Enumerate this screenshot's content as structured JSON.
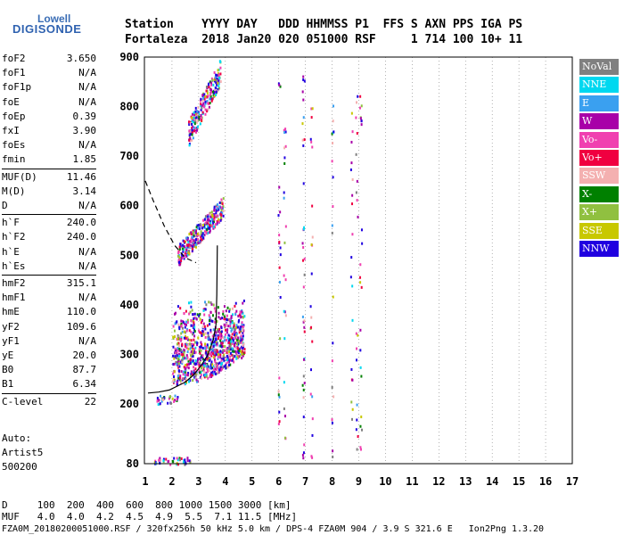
{
  "logo": {
    "line1": "Lowell",
    "line2": "DIGISONDE"
  },
  "header": {
    "line1": "Station    YYYY DAY   DDD HHMMSS P1  FFS S AXN PPS IGA PS",
    "line2": "Fortaleza  2018 Jan20 020 051000 RSF     1 714 100 10+ 11"
  },
  "params": [
    {
      "name": "foF2",
      "value": "3.650"
    },
    {
      "name": "foF1",
      "value": "N/A"
    },
    {
      "name": "foF1p",
      "value": "N/A"
    },
    {
      "name": "foE",
      "value": "N/A"
    },
    {
      "name": "foEp",
      "value": "0.39"
    },
    {
      "name": "fxI",
      "value": "3.90"
    },
    {
      "name": "foEs",
      "value": "N/A"
    },
    {
      "name": "fmin",
      "value": "1.85"
    },
    {
      "name": "MUF(D)",
      "value": "11.46"
    },
    {
      "name": "M(D)",
      "value": "3.14"
    },
    {
      "name": "D",
      "value": "N/A"
    },
    {
      "name": "h`F",
      "value": "240.0"
    },
    {
      "name": "h`F2",
      "value": "240.0"
    },
    {
      "name": "h`E",
      "value": "N/A"
    },
    {
      "name": "h`Es",
      "value": "N/A"
    },
    {
      "name": "hmF2",
      "value": "315.1"
    },
    {
      "name": "hmF1",
      "value": "N/A"
    },
    {
      "name": "hmE",
      "value": "110.0"
    },
    {
      "name": "yF2",
      "value": "109.6"
    },
    {
      "name": "yF1",
      "value": "N/A"
    },
    {
      "name": "yE",
      "value": "20.0"
    },
    {
      "name": "B0",
      "value": "87.7"
    },
    {
      "name": "B1",
      "value": "6.34"
    },
    {
      "name": "C-level",
      "value": "22"
    }
  ],
  "notes": {
    "auto": "Auto:",
    "artist": "Artist5",
    "version": "500200"
  },
  "legend": [
    {
      "label": "NoVal",
      "color": "#808080"
    },
    {
      "label": "NNE",
      "color": "#00d8f0"
    },
    {
      "label": "E",
      "color": "#3aa0f0"
    },
    {
      "label": "W",
      "color": "#a800a8"
    },
    {
      "label": "Vo-",
      "color": "#f040b0"
    },
    {
      "label": "Vo+",
      "color": "#f00040"
    },
    {
      "label": "SSW",
      "color": "#f4b0b0"
    },
    {
      "label": "X-",
      "color": "#008000"
    },
    {
      "label": "X+",
      "color": "#90c040"
    },
    {
      "label": "SSE",
      "color": "#c8c800"
    },
    {
      "label": "NNW",
      "color": "#2000e0"
    }
  ],
  "chart_data": {
    "type": "scatter",
    "title": "",
    "xlabel": "",
    "ylabel": "",
    "xlim": [
      1,
      17
    ],
    "ylim": [
      80,
      900
    ],
    "xticks": [
      "1",
      "2",
      "3",
      "4",
      "5",
      "6",
      "7",
      "8",
      "9",
      "10",
      "11",
      "12",
      "13",
      "14",
      "15",
      "16",
      "17"
    ],
    "yticks": [
      "80",
      "200",
      "300",
      "400",
      "500",
      "600",
      "700",
      "800",
      "900"
    ],
    "grid": "dotted vertical at each MHz",
    "profile_curve": {
      "name": "",
      "x": [
        1.1,
        1.5,
        1.9,
        2.2,
        2.5,
        2.8,
        3.1,
        3.35,
        3.55,
        3.65
      ],
      "y": [
        222,
        224,
        228,
        236,
        244,
        258,
        278,
        300,
        330,
        360
      ]
    },
    "profile_vertical": {
      "x": [
        3.65,
        3.68,
        3.7
      ],
      "y": [
        360,
        420,
        520
      ]
    },
    "dashed_curve": {
      "x": [
        1.0,
        1.3,
        1.7,
        2.1,
        2.5,
        2.9
      ],
      "y": [
        650,
        610,
        560,
        520,
        495,
        485
      ]
    },
    "echo_clusters": [
      {
        "name": "F2 trace (vertical)",
        "x_range": [
          2.0,
          4.7
        ],
        "y_range": [
          240,
          420
        ]
      },
      {
        "name": "F2 second hop",
        "x_range": [
          2.2,
          3.9
        ],
        "y_range": [
          480,
          620
        ]
      },
      {
        "name": "F2 third hop",
        "x_range": [
          2.6,
          3.8
        ],
        "y_range": [
          720,
          900
        ]
      },
      {
        "name": "Es low trace",
        "x_range": [
          1.3,
          2.7
        ],
        "y_range": [
          80,
          95
        ]
      },
      {
        "name": "E low echoes",
        "x_range": [
          1.4,
          2.2
        ],
        "y_range": [
          200,
          220
        ]
      },
      {
        "name": "oblique 6 MHz",
        "x_range": [
          5.9,
          6.3
        ],
        "y_range": [
          130,
          860
        ]
      },
      {
        "name": "oblique 7 MHz",
        "x_range": [
          6.8,
          7.3
        ],
        "y_range": [
          90,
          870
        ]
      },
      {
        "name": "oblique 8-9 MHz",
        "x_range": [
          7.9,
          9.1
        ],
        "y_range": [
          90,
          830
        ]
      }
    ]
  },
  "footer": {
    "d_row": "D     100  200  400  600  800 1000 1500 3000 [km]",
    "muf_row": "MUF   4.0  4.0  4.2  4.5  4.9  5.5  7.1 11.5 [MHz]",
    "file_row": "FZA0M_20180200051000.RSF / 320fx256h 50 kHz 5.0 km / DPS-4 FZA0M 904 / 3.9 S 321.6 E   Ion2Png 1.3.20"
  }
}
